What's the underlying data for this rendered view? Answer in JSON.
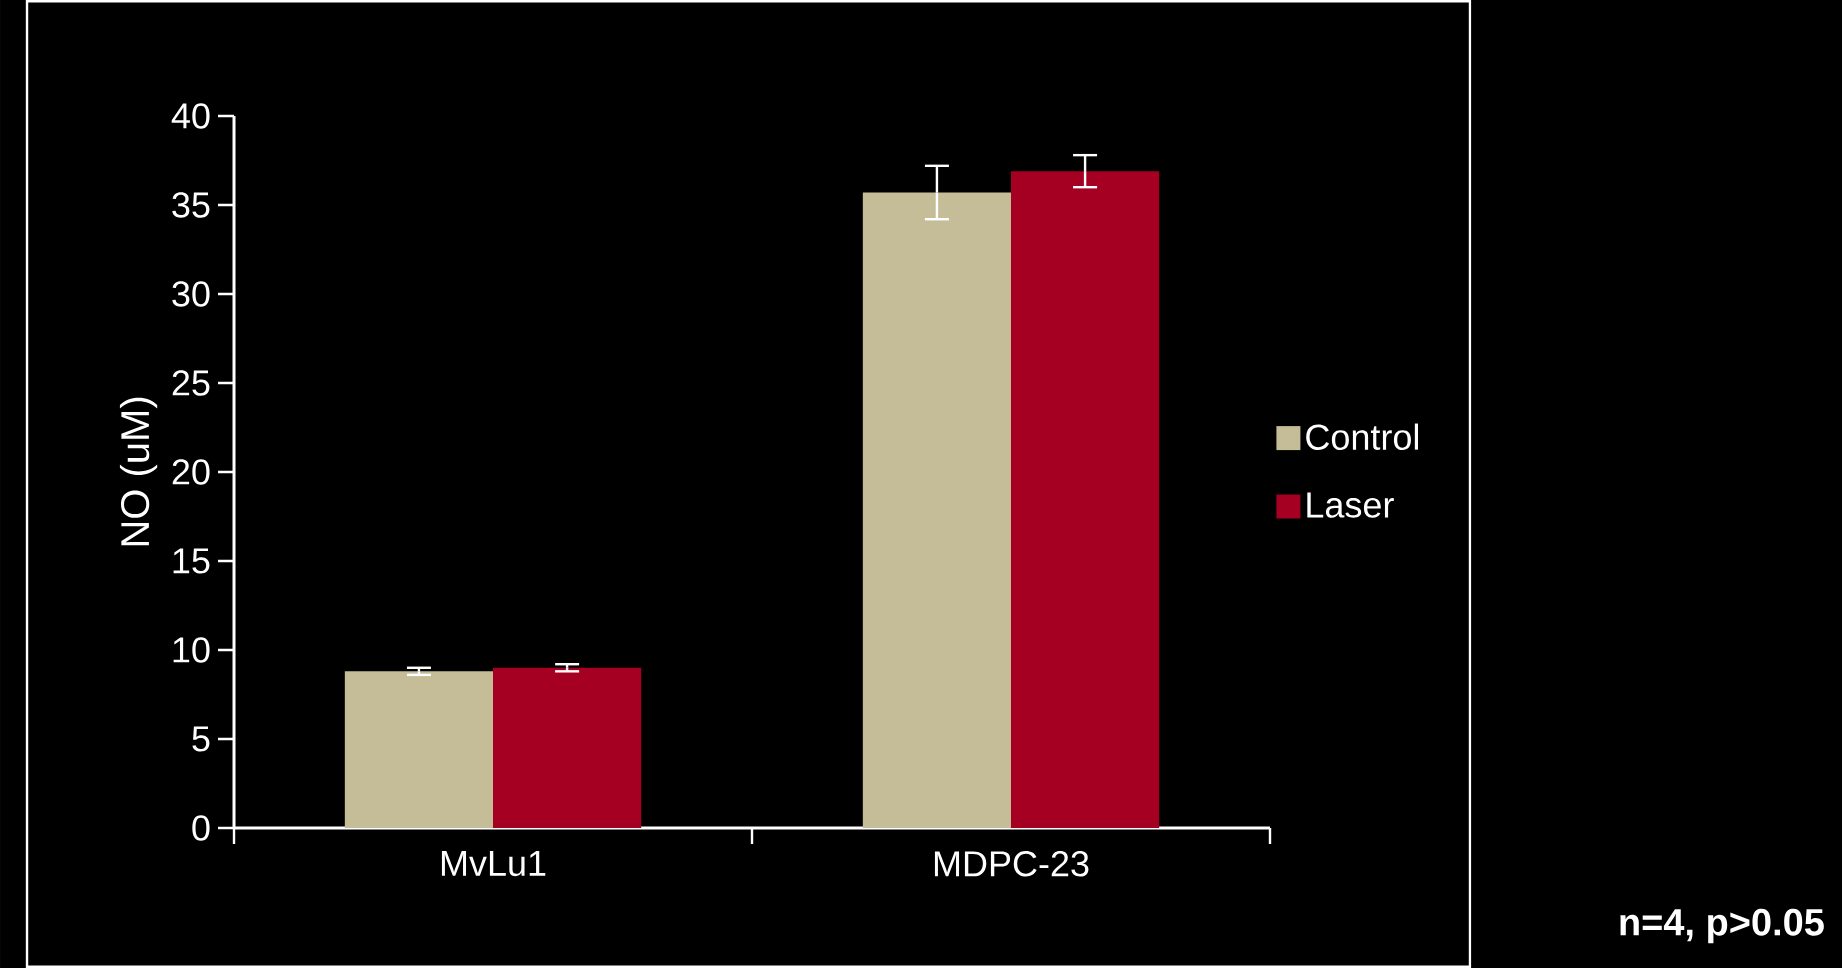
{
  "chart_data": {
    "type": "bar",
    "ylabel": "NO (uM)",
    "categories": [
      "MvLu1",
      "MDPC-23"
    ],
    "series": [
      {
        "name": "Control",
        "color": "#c4bd97",
        "values": [
          8.8,
          35.7
        ],
        "errors": [
          0.2,
          1.5
        ]
      },
      {
        "name": "Laser",
        "color": "#a50021",
        "values": [
          9.0,
          36.9
        ],
        "errors": [
          0.2,
          0.9
        ]
      }
    ],
    "ylim": [
      0,
      40
    ],
    "yticks": [
      0,
      5,
      10,
      15,
      20,
      25,
      30,
      35,
      40
    ],
    "legend": "right",
    "grid": false,
    "annotations": [
      "n=4, p>0.05"
    ]
  }
}
